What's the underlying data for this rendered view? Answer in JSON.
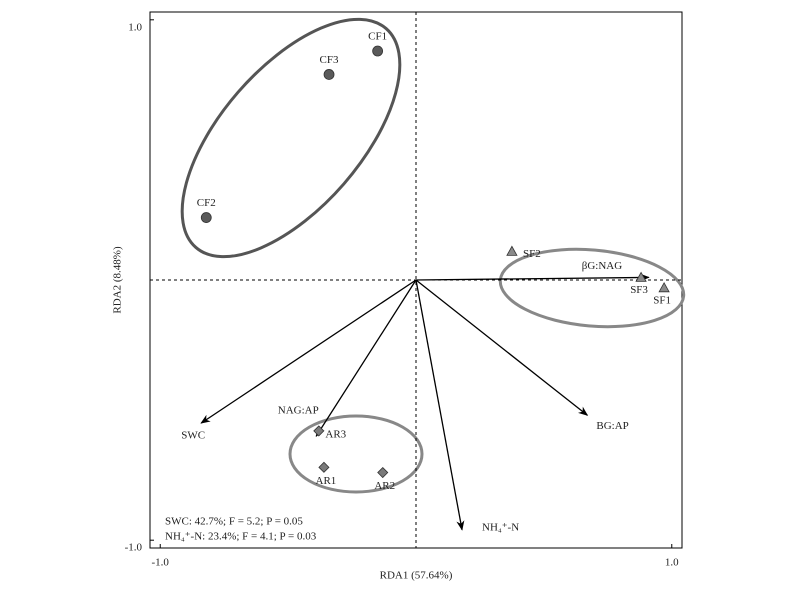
{
  "chart_data": {
    "type": "scatter",
    "xlabel": "RDA1 (57.64%)",
    "ylabel": "RDA2 (8.48%)",
    "xlim": [
      -1.04,
      1.04
    ],
    "ylim": [
      -1.03,
      1.03
    ],
    "xticks": [
      {
        "value": -1,
        "label": "-1.0"
      },
      {
        "value": 1,
        "label": "1.0"
      }
    ],
    "yticks": [
      {
        "value": -1,
        "label": "-1.0"
      },
      {
        "value": 1,
        "label": "1.0"
      }
    ],
    "series": [
      {
        "marker": "circle",
        "color": "#5a5a5a",
        "labels": [
          "CF1",
          "CF3",
          "CF2"
        ],
        "x": [
          -0.15,
          -0.34,
          -0.82
        ],
        "values": [
          0.88,
          0.79,
          0.24
        ]
      },
      {
        "marker": "triangle",
        "color": "#8a8a8a",
        "labels": [
          "SF2",
          "SF3",
          "SF1"
        ],
        "x": [
          0.375,
          0.88,
          0.97
        ],
        "values": [
          0.11,
          0.01,
          -0.03
        ]
      },
      {
        "marker": "diamond",
        "color": "#7a7a7a",
        "labels": [
          "AR3",
          "AR1",
          "AR2"
        ],
        "x": [
          -0.38,
          -0.36,
          -0.13
        ],
        "values": [
          -0.58,
          -0.72,
          -0.74
        ]
      }
    ],
    "vectors": {
      "labels": [
        "βG:NAG",
        "BG:AP",
        "NH₄⁺-N",
        "SWC",
        "NAG:AP"
      ],
      "x": [
        0.91,
        0.67,
        0.18,
        -0.84,
        -0.39
      ],
      "values": [
        0.01,
        -0.52,
        -0.96,
        -0.55,
        -0.6
      ]
    },
    "annotations": [
      "SWC: 42.7%; F = 5.2; P = 0.05",
      "NH₄⁺-N: 23.4%; F = 4.1; P = 0.03"
    ]
  }
}
